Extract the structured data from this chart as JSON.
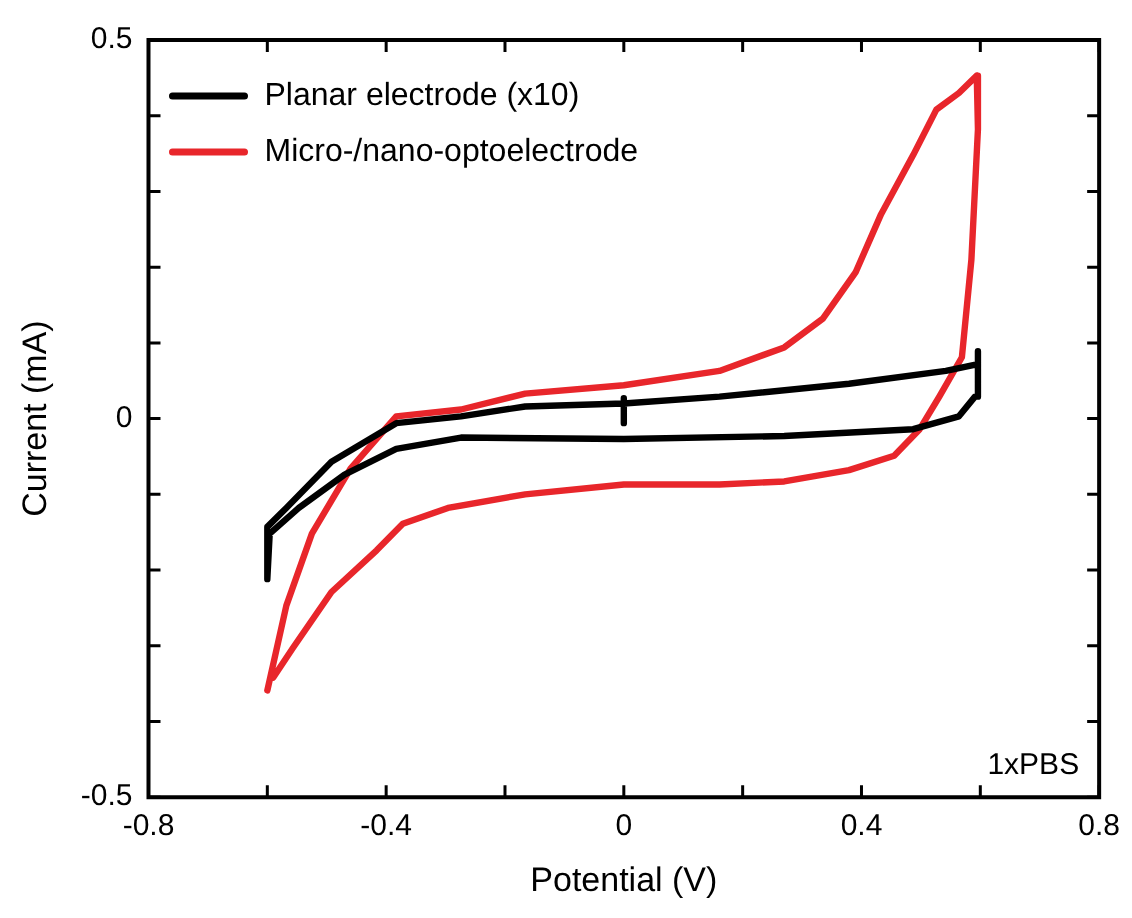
{
  "chart_data": {
    "type": "line",
    "xlabel": "Potential (V)",
    "ylabel": "Current (mA)",
    "xlim": [
      -0.8,
      0.8
    ],
    "ylim": [
      -0.5,
      0.5
    ],
    "xticks": [
      -0.8,
      {
        "value": -0.6,
        "label": null
      },
      -0.4,
      {
        "value": -0.2,
        "label": null
      },
      0,
      {
        "value": 0.2,
        "label": null
      },
      0.4,
      {
        "value": 0.6,
        "label": null
      },
      0.8
    ],
    "yticks": [
      -0.5,
      {
        "value": -0.4,
        "label": null
      },
      {
        "value": -0.3,
        "label": null
      },
      {
        "value": -0.2,
        "label": null
      },
      {
        "value": -0.1,
        "label": null
      },
      0,
      {
        "value": 0.1,
        "label": null
      },
      {
        "value": 0.2,
        "label": null
      },
      {
        "value": 0.3,
        "label": null
      },
      {
        "value": 0.4,
        "label": null
      },
      0.5
    ],
    "grid": false,
    "legend": "top left",
    "marker": "none",
    "line_style": "solid",
    "annotations": [
      "1xPBS"
    ],
    "series": [
      {
        "name": "Planar electrode (x10)",
        "color": "#000000",
        "x": [
          -0.6,
          -0.6,
          -0.568,
          -0.492,
          -0.383,
          -0.274,
          -0.166,
          0,
          0,
          0,
          0,
          0.161,
          0.379,
          0.542,
          0.596,
          0.596,
          0.596,
          0.591,
          0.564,
          0.487,
          0.27,
          0,
          -0.274,
          -0.383,
          -0.47,
          -0.547,
          -0.596,
          -0.6,
          -0.6
        ],
        "values": [
          -0.212,
          -0.143,
          -0.118,
          -0.057,
          -0.006,
          0.003,
          0.016,
          0.02,
          0.027,
          -0.006,
          0.02,
          0.029,
          0.046,
          0.063,
          0.072,
          0.089,
          0.029,
          0.029,
          0.003,
          -0.014,
          -0.023,
          -0.027,
          -0.025,
          -0.04,
          -0.074,
          -0.118,
          -0.152,
          -0.212,
          -0.143
        ]
      },
      {
        "name": "Micro-/nano-optoelectrode",
        "color": "#e8262b",
        "x": [
          -0.6,
          -0.568,
          -0.525,
          -0.46,
          -0.383,
          -0.274,
          -0.166,
          0,
          0.161,
          0.27,
          0.335,
          0.39,
          0.433,
          0.487,
          0.526,
          0.564,
          0.594,
          0.596,
          0.585,
          0.569,
          0.531,
          0.498,
          0.455,
          0.379,
          0.27,
          0.161,
          0,
          -0.166,
          -0.296,
          -0.372,
          -0.416,
          -0.492,
          -0.557,
          -0.59
        ],
        "values": [
          -0.359,
          -0.247,
          -0.152,
          -0.066,
          0.003,
          0.012,
          0.033,
          0.044,
          0.063,
          0.094,
          0.132,
          0.193,
          0.27,
          0.348,
          0.408,
          0.43,
          0.453,
          0.382,
          0.21,
          0.081,
          0.029,
          -0.014,
          -0.049,
          -0.068,
          -0.083,
          -0.087,
          -0.087,
          -0.1,
          -0.118,
          -0.139,
          -0.174,
          -0.229,
          -0.303,
          -0.342
        ]
      }
    ]
  }
}
